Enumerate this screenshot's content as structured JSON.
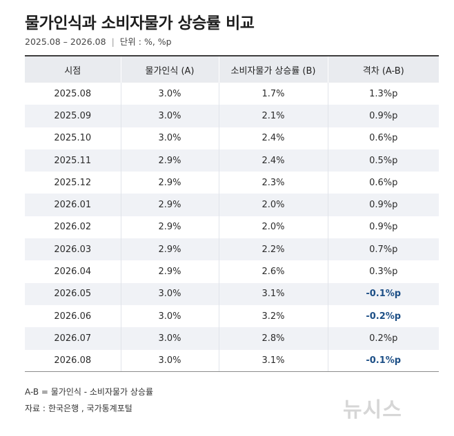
{
  "title": "물가인식과 소비자물가 상승률 비교",
  "subtitle": {
    "period": "2025.08 – 2026.08",
    "separator": "|",
    "unit": "단위 : %, %p"
  },
  "chart_data": {
    "type": "table",
    "columns": [
      "시점",
      "물가인식 (A)",
      "소비자물가 상승률 (B)",
      "격차 (A-B)"
    ],
    "rows": [
      {
        "period": "2025.08",
        "perception": "3.0%",
        "cpi": "1.7%",
        "gap": "1.3%p",
        "negative": false
      },
      {
        "period": "2025.09",
        "perception": "3.0%",
        "cpi": "2.1%",
        "gap": "0.9%p",
        "negative": false
      },
      {
        "period": "2025.10",
        "perception": "3.0%",
        "cpi": "2.4%",
        "gap": "0.6%p",
        "negative": false
      },
      {
        "period": "2025.11",
        "perception": "2.9%",
        "cpi": "2.4%",
        "gap": "0.5%p",
        "negative": false
      },
      {
        "period": "2025.12",
        "perception": "2.9%",
        "cpi": "2.3%",
        "gap": "0.6%p",
        "negative": false
      },
      {
        "period": "2026.01",
        "perception": "2.9%",
        "cpi": "2.0%",
        "gap": "0.9%p",
        "negative": false
      },
      {
        "period": "2026.02",
        "perception": "2.9%",
        "cpi": "2.0%",
        "gap": "0.9%p",
        "negative": false
      },
      {
        "period": "2026.03",
        "perception": "2.9%",
        "cpi": "2.2%",
        "gap": "0.7%p",
        "negative": false
      },
      {
        "period": "2026.04",
        "perception": "2.9%",
        "cpi": "2.6%",
        "gap": "0.3%p",
        "negative": false
      },
      {
        "period": "2026.05",
        "perception": "3.0%",
        "cpi": "3.1%",
        "gap": "-0.1%p",
        "negative": true
      },
      {
        "period": "2026.06",
        "perception": "3.0%",
        "cpi": "3.2%",
        "gap": "-0.2%p",
        "negative": true
      },
      {
        "period": "2026.07",
        "perception": "3.0%",
        "cpi": "2.8%",
        "gap": "0.2%p",
        "negative": false
      },
      {
        "period": "2026.08",
        "perception": "3.0%",
        "cpi": "3.1%",
        "gap": "-0.1%p",
        "negative": true
      }
    ],
    "colors": {
      "negative_gap": "#1d4f86",
      "header_bg": "#e9ebef",
      "stripe_bg": "#f0f2f6"
    }
  },
  "notes": {
    "formula": "A-B = 물가인식 - 소비자물가 상승률",
    "source_label": "자료 :",
    "source": "한국은행 , 국가통계포털"
  },
  "watermark": "뉴시스"
}
